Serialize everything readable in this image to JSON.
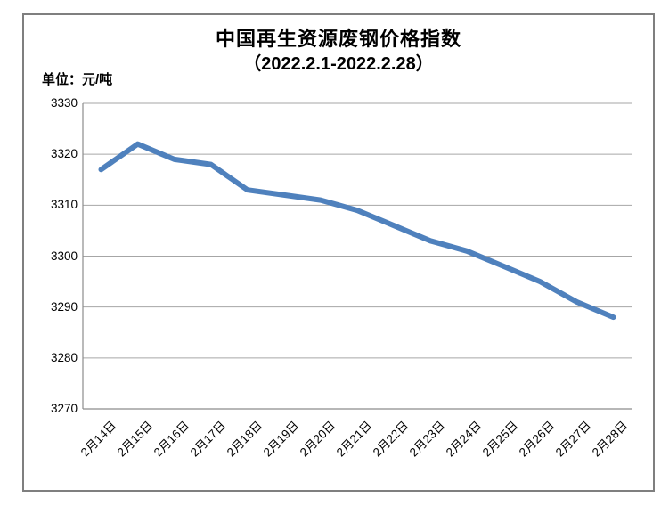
{
  "title": {
    "line1": "中国再生资源废钢价格指数",
    "line2": "（2022.2.1-2022.2.28）"
  },
  "unit_label": "单位：元/吨",
  "colors": {
    "line": "#4F81BD",
    "gridline": "#A6A6A6",
    "axis": "#8C8C8C",
    "frame_border": "#7F7F7F",
    "text": "#000000"
  },
  "chart_data": {
    "type": "line",
    "title": "中国再生资源废钢价格指数（2022.2.1-2022.2.28）",
    "ylabel": "单位：元/吨",
    "xlabel": "",
    "categories": [
      "2月14日",
      "2月15日",
      "2月16日",
      "2月17日",
      "2月18日",
      "2月19日",
      "2月20日",
      "2月21日",
      "2月22日",
      "2月23日",
      "2月24日",
      "2月25日",
      "2月26日",
      "2月27日",
      "2月28日"
    ],
    "values": [
      3317,
      3322,
      3319,
      3318,
      3313,
      3312,
      3311,
      3309,
      3306,
      3303,
      3301,
      3298,
      3295,
      3291,
      3288
    ],
    "ylim": [
      3270,
      3330
    ],
    "yticks": [
      3330,
      3320,
      3310,
      3300,
      3290,
      3280,
      3270
    ],
    "ytick_interval": 10,
    "grid": true,
    "legend": "none",
    "line_width": 6
  }
}
